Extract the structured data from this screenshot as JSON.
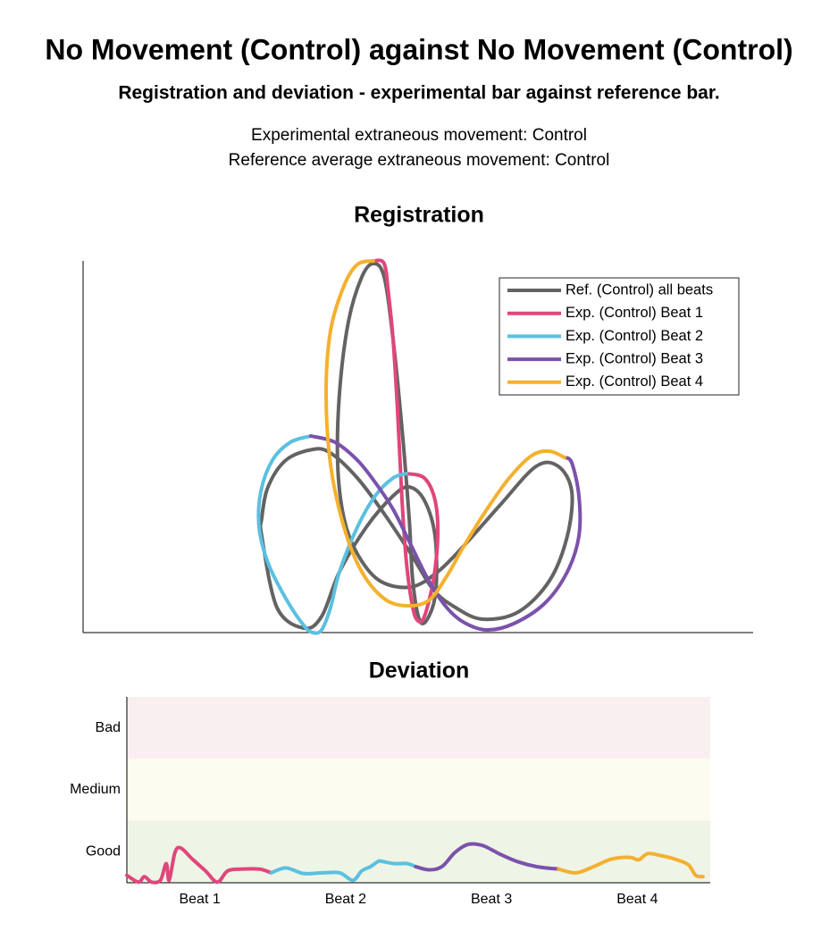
{
  "header": {
    "title": "No Movement (Control) against No Movement (Control)",
    "subtitle": "Registration and deviation - experimental bar against reference bar.",
    "lines": [
      "Experimental extraneous movement: Control",
      "Reference average extraneous movement: Control"
    ]
  },
  "chart_data": [
    {
      "type": "line",
      "title": "Registration",
      "xlim": [
        0,
        750
      ],
      "ylim": [
        0,
        416
      ],
      "legend": "upper right",
      "series": [
        {
          "name": "Ref. (Control) all beats",
          "color": "#636363",
          "closed": true,
          "x": [
            200,
            217,
            247,
            267,
            287,
            317,
            347,
            365,
            382,
            394,
            395,
            387,
            377,
            369,
            365,
            357,
            347,
            337,
            325,
            312,
            297,
            287,
            285,
            292,
            307,
            332,
            367,
            397,
            427,
            467,
            507,
            532,
            547,
            542,
            522,
            487,
            447,
            417,
            392,
            367,
            337,
            307,
            277,
            257,
            227,
            207,
            200
          ],
          "y": [
            108,
            28,
            5,
            18,
            68,
            118,
            153,
            163,
            148,
            108,
            48,
            18,
            13,
            58,
            128,
            228,
            328,
            398,
            413,
            398,
            348,
            268,
            188,
            128,
            88,
            58,
            51,
            68,
            98,
            143,
            186,
            186,
            158,
            108,
            58,
            23,
            15,
            28,
            48,
            88,
            133,
            173,
            201,
            205,
            193,
            163,
            128
          ]
        },
        {
          "name": "Exp. (Control) Beat 1",
          "color": "#e0467c",
          "closed": false,
          "x": [
            325,
            337,
            342,
            347,
            352,
            357,
            362,
            369,
            375,
            382,
            392,
            397,
            394,
            382,
            362
          ],
          "y": [
            416,
            413,
            378,
            328,
            248,
            148,
            78,
            28,
            13,
            18,
            58,
            108,
            148,
            173,
            178
          ]
        },
        {
          "name": "Exp. (Control) Beat 2",
          "color": "#5bc0e0",
          "closed": false,
          "x": [
            362,
            347,
            327,
            307,
            287,
            277,
            267,
            257,
            247,
            227,
            207,
            197,
            199,
            212,
            232,
            255
          ],
          "y": [
            178,
            173,
            153,
            118,
            68,
            28,
            3,
            0,
            8,
            38,
            78,
            118,
            158,
            193,
            213,
            220
          ]
        },
        {
          "name": "Exp. (Control) Beat 3",
          "color": "#7b52ab",
          "closed": false,
          "x": [
            255,
            282,
            307,
            327,
            347,
            367,
            387,
            407,
            427,
            452,
            482,
            517,
            542,
            555,
            555,
            547,
            539
          ],
          "y": [
            220,
            213,
            193,
            168,
            138,
            98,
            58,
            28,
            11,
            3,
            10,
            33,
            68,
            108,
            153,
            190,
            196
          ]
        },
        {
          "name": "Exp. (Control) Beat 4",
          "color": "#f5b02e",
          "closed": false,
          "x": [
            539,
            522,
            502,
            477,
            452,
            427,
            407,
            387,
            362,
            337,
            312,
            292,
            277,
            272,
            277,
            292,
            307,
            325
          ],
          "y": [
            196,
            203,
            198,
            173,
            138,
            98,
            63,
            36,
            30,
            38,
            68,
            118,
            188,
            268,
            338,
            388,
            412,
            416
          ]
        }
      ]
    },
    {
      "type": "line",
      "title": "Deviation",
      "xlim": [
        0,
        4
      ],
      "ylim": [
        0,
        3
      ],
      "xticks": [
        {
          "value": 0.5,
          "label": "Beat 1"
        },
        {
          "value": 1.5,
          "label": "Beat 2"
        },
        {
          "value": 2.5,
          "label": "Beat 3"
        },
        {
          "value": 3.5,
          "label": "Beat 4"
        }
      ],
      "yticks": [
        {
          "value": 0.5,
          "label": "Good"
        },
        {
          "value": 1.5,
          "label": "Medium"
        },
        {
          "value": 2.5,
          "label": "Bad"
        }
      ],
      "bands": [
        {
          "from": 0,
          "to": 1,
          "color": "#eef5e6"
        },
        {
          "from": 1,
          "to": 2,
          "color": "#fdfcf0"
        },
        {
          "from": 2,
          "to": 3,
          "color": "#f9eff0"
        }
      ],
      "series": [
        {
          "color": "#e0467c",
          "x": [
            0,
            0.08,
            0.12,
            0.17,
            0.23,
            0.27,
            0.29,
            0.33,
            0.37,
            0.45,
            0.54,
            0.62,
            0.69,
            0.78,
            0.91,
            0.99
          ],
          "y": [
            0.12,
            0.01,
            0.1,
            0.01,
            0.04,
            0.31,
            0.04,
            0.49,
            0.56,
            0.38,
            0.19,
            0.01,
            0.19,
            0.22,
            0.22,
            0.16
          ]
        },
        {
          "color": "#5bc0e0",
          "x": [
            0.99,
            1.09,
            1.21,
            1.34,
            1.46,
            1.55,
            1.61,
            1.67,
            1.72,
            1.74,
            1.83,
            1.92,
            1.98
          ],
          "y": [
            0.16,
            0.24,
            0.15,
            0.16,
            0.16,
            0.04,
            0.19,
            0.26,
            0.34,
            0.35,
            0.31,
            0.31,
            0.26
          ]
        },
        {
          "color": "#7b52ab",
          "x": [
            1.98,
            2.07,
            2.16,
            2.25,
            2.34,
            2.44,
            2.56,
            2.68,
            2.81,
            2.96
          ],
          "y": [
            0.26,
            0.21,
            0.26,
            0.49,
            0.62,
            0.6,
            0.46,
            0.34,
            0.26,
            0.22
          ]
        },
        {
          "color": "#f5b02e",
          "x": [
            2.96,
            3.08,
            3.2,
            3.32,
            3.45,
            3.51,
            3.57,
            3.66,
            3.76,
            3.85,
            3.9,
            3.95
          ],
          "y": [
            0.22,
            0.16,
            0.26,
            0.38,
            0.41,
            0.37,
            0.47,
            0.44,
            0.38,
            0.29,
            0.12,
            0.1
          ]
        }
      ]
    }
  ]
}
